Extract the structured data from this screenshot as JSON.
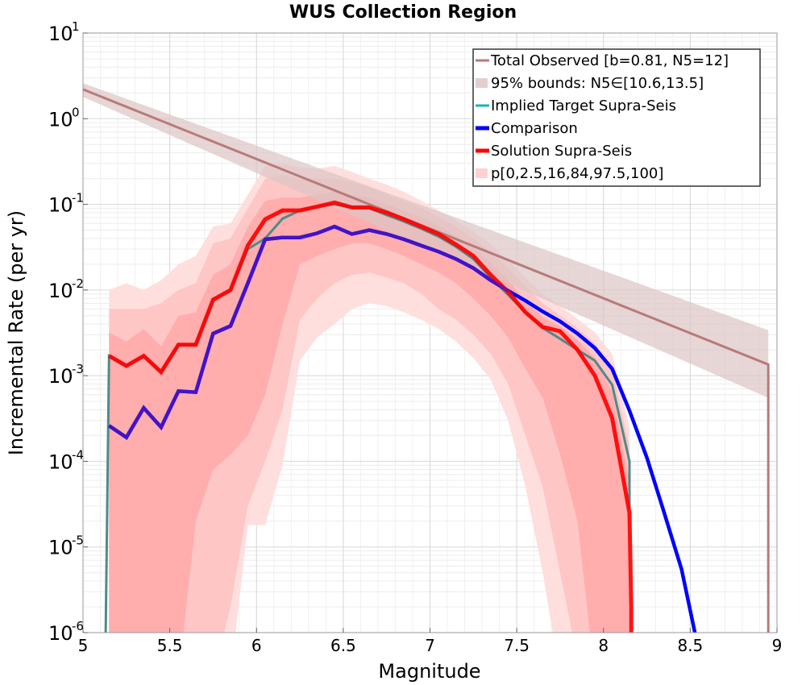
{
  "chart_data": {
    "type": "line",
    "title": "WUS Collection Region",
    "xlabel": "Magnitude",
    "ylabel": "Incremental Rate (per yr)",
    "xlim": [
      5,
      9
    ],
    "ylim_log10": [
      -6,
      1
    ],
    "y_scale": "log",
    "grid": true,
    "legend_position": "top-right",
    "x_ticks": [
      "5",
      "5.5",
      "6",
      "6.5",
      "7",
      "7.5",
      "8",
      "8.5",
      "9"
    ],
    "y_ticks": [
      {
        "base": "10",
        "exp": "1"
      },
      {
        "base": "10",
        "exp": "0"
      },
      {
        "base": "10",
        "exp": "-1"
      },
      {
        "base": "10",
        "exp": "-2"
      },
      {
        "base": "10",
        "exp": "-3"
      },
      {
        "base": "10",
        "exp": "-4"
      },
      {
        "base": "10",
        "exp": "-5"
      },
      {
        "base": "10",
        "exp": "-6"
      }
    ],
    "legend": [
      {
        "label": "Total Observed [b=0.81, N5=12]",
        "kind": "line",
        "color": "#b97a7a"
      },
      {
        "label": "95% bounds: N5∈[10.6,13.5]",
        "kind": "band",
        "color": "#e3cfcf"
      },
      {
        "label": "Implied Target Supra-Seis",
        "kind": "line",
        "color": "#1ab3b3"
      },
      {
        "label": "Comparison",
        "kind": "line",
        "color": "#0000ff"
      },
      {
        "label": "Solution Supra-Seis",
        "kind": "line",
        "color": "#ff0000"
      },
      {
        "label": "p[0,2.5,16,84,97.5,100]",
        "kind": "band",
        "color": "#ffd0d0"
      }
    ],
    "series": [
      {
        "name": "Total Observed [b=0.81, N5=12]",
        "color": "#b97a7a",
        "x": [
          5.0,
          8.95,
          8.95
        ],
        "y": [
          2.2,
          0.00135,
          1e-07
        ]
      },
      {
        "name": "95% bounds: N5∈[10.6,13.5]",
        "color": "#e3cfcf",
        "x": [
          5.0,
          8.95
        ],
        "y_low": [
          1.8,
          0.00055
        ],
        "y_high": [
          2.6,
          0.0034
        ]
      },
      {
        "name": "Comparison",
        "color": "#0000ff",
        "x": [
          5.15,
          5.25,
          5.35,
          5.45,
          5.55,
          5.65,
          5.75,
          5.85,
          5.95,
          6.05,
          6.15,
          6.25,
          6.35,
          6.45,
          6.55,
          6.65,
          6.75,
          6.85,
          6.95,
          7.05,
          7.15,
          7.25,
          7.35,
          7.45,
          7.55,
          7.65,
          7.75,
          7.85,
          7.95,
          8.05,
          8.15,
          8.25,
          8.35,
          8.45,
          8.55
        ],
        "y": [
          0.00026,
          0.00019,
          0.00042,
          0.00025,
          0.00066,
          0.00064,
          0.0031,
          0.0038,
          0.012,
          0.039,
          0.041,
          0.041,
          0.046,
          0.055,
          0.045,
          0.05,
          0.045,
          0.039,
          0.033,
          0.028,
          0.023,
          0.018,
          0.013,
          0.0098,
          0.0075,
          0.0056,
          0.0043,
          0.0031,
          0.0021,
          0.0012,
          0.00039,
          0.00011,
          2.5e-05,
          5.5e-06,
          6e-07
        ]
      },
      {
        "name": "Implied Target Supra-Seis",
        "color": "#1ab3b3",
        "x": [
          5.13,
          5.15,
          5.25,
          5.35,
          5.45,
          5.55,
          5.65,
          5.75,
          5.85,
          5.95,
          6.05,
          6.15,
          6.25,
          6.35,
          6.45,
          6.55,
          6.65,
          6.75,
          6.85,
          6.95,
          7.05,
          7.15,
          7.25,
          7.35,
          7.45,
          7.55,
          7.65,
          7.75,
          7.85,
          7.95,
          8.05,
          8.15,
          8.15
        ],
        "y": [
          8e-07,
          0.0017,
          0.0013,
          0.0017,
          0.0011,
          0.0023,
          0.0023,
          0.0077,
          0.01,
          0.03,
          0.04,
          0.068,
          0.085,
          0.095,
          0.1,
          0.092,
          0.09,
          0.075,
          0.063,
          0.052,
          0.042,
          0.032,
          0.023,
          0.014,
          0.0088,
          0.0055,
          0.0036,
          0.0027,
          0.002,
          0.0015,
          0.00078,
          0.0001,
          2.8e-05
        ]
      },
      {
        "name": "Solution Supra-Seis",
        "color": "#ff0000",
        "x": [
          5.15,
          5.25,
          5.35,
          5.45,
          5.55,
          5.65,
          5.75,
          5.85,
          5.95,
          6.05,
          6.15,
          6.25,
          6.35,
          6.45,
          6.55,
          6.65,
          6.75,
          6.85,
          6.95,
          7.05,
          7.15,
          7.25,
          7.35,
          7.45,
          7.55,
          7.65,
          7.75,
          7.85,
          7.95,
          8.05,
          8.15,
          8.16,
          8.16
        ],
        "y": [
          0.0017,
          0.0013,
          0.0017,
          0.0011,
          0.0023,
          0.0023,
          0.0077,
          0.01,
          0.033,
          0.067,
          0.085,
          0.085,
          0.094,
          0.105,
          0.092,
          0.092,
          0.08,
          0.067,
          0.055,
          0.045,
          0.034,
          0.025,
          0.015,
          0.0095,
          0.0055,
          0.0037,
          0.0033,
          0.002,
          0.001,
          0.00032,
          2.5e-05,
          2e-06,
          5e-07
        ]
      },
      {
        "name": "p[0,2.5,16,84,97.5,100]",
        "color": "#ffd0d0",
        "x": [
          5.15,
          5.25,
          5.35,
          5.45,
          5.55,
          5.65,
          5.75,
          5.85,
          5.95,
          6.05,
          6.15,
          6.25,
          6.35,
          6.45,
          6.55,
          6.65,
          6.75,
          6.85,
          6.95,
          7.05,
          7.15,
          7.25,
          7.35,
          7.45,
          7.55,
          7.65,
          7.75,
          7.85,
          7.95,
          8.05,
          8.15
        ],
        "p100": [
          0.01,
          0.012,
          0.01,
          0.013,
          0.02,
          0.025,
          0.055,
          0.06,
          0.13,
          0.28,
          0.3,
          0.27,
          0.26,
          0.28,
          0.24,
          0.2,
          0.17,
          0.14,
          0.11,
          0.085,
          0.065,
          0.048,
          0.034,
          0.022,
          0.014,
          0.009,
          0.0065,
          0.0046,
          0.0032,
          0.0018,
          0.00025
        ],
        "p97_5": [
          0.006,
          0.006,
          0.006,
          0.007,
          0.01,
          0.012,
          0.035,
          0.04,
          0.09,
          0.2,
          0.22,
          0.2,
          0.2,
          0.2,
          0.18,
          0.16,
          0.13,
          0.11,
          0.09,
          0.07,
          0.055,
          0.04,
          0.028,
          0.018,
          0.011,
          0.007,
          0.005,
          0.0036,
          0.0024,
          0.0012,
          0.00015
        ],
        "p84": [
          0.0032,
          0.0025,
          0.0035,
          0.0022,
          0.005,
          0.0055,
          0.015,
          0.02,
          0.055,
          0.11,
          0.12,
          0.12,
          0.13,
          0.14,
          0.13,
          0.12,
          0.1,
          0.085,
          0.07,
          0.056,
          0.043,
          0.031,
          0.021,
          0.013,
          0.0075,
          0.0048,
          0.0038,
          0.0026,
          0.0016,
          0.00065,
          6e-05
        ],
        "p16": [
          3e-07,
          3e-07,
          3e-07,
          3e-07,
          3e-07,
          2e-05,
          8e-05,
          0.00012,
          0.0002,
          0.0006,
          0.004,
          0.02,
          0.025,
          0.03,
          0.035,
          0.035,
          0.03,
          0.025,
          0.02,
          0.016,
          0.012,
          0.008,
          0.005,
          0.0028,
          0.0012,
          0.00055,
          0.00012,
          2e-05,
          3e-07,
          3e-07,
          3e-07
        ],
        "p2_5": [
          3e-07,
          3e-07,
          3e-07,
          3e-07,
          3e-07,
          3e-07,
          3e-07,
          2e-06,
          3e-05,
          0.0001,
          0.0004,
          0.0045,
          0.008,
          0.012,
          0.015,
          0.016,
          0.014,
          0.012,
          0.009,
          0.006,
          0.0045,
          0.003,
          0.0018,
          0.0008,
          0.0002,
          5e-05,
          5e-06,
          5e-07,
          3e-07,
          3e-07,
          3e-07
        ],
        "p0": [
          3e-07,
          3e-07,
          3e-07,
          3e-07,
          3e-07,
          3e-07,
          3e-07,
          3e-07,
          1.8e-05,
          1.8e-05,
          9e-05,
          0.0015,
          0.0028,
          0.004,
          0.006,
          0.007,
          0.0065,
          0.0055,
          0.0045,
          0.0035,
          0.0025,
          0.0016,
          0.0009,
          0.0003,
          5e-05,
          5e-06,
          3e-07,
          3e-07,
          3e-07,
          3e-07,
          3e-07
        ]
      }
    ]
  }
}
